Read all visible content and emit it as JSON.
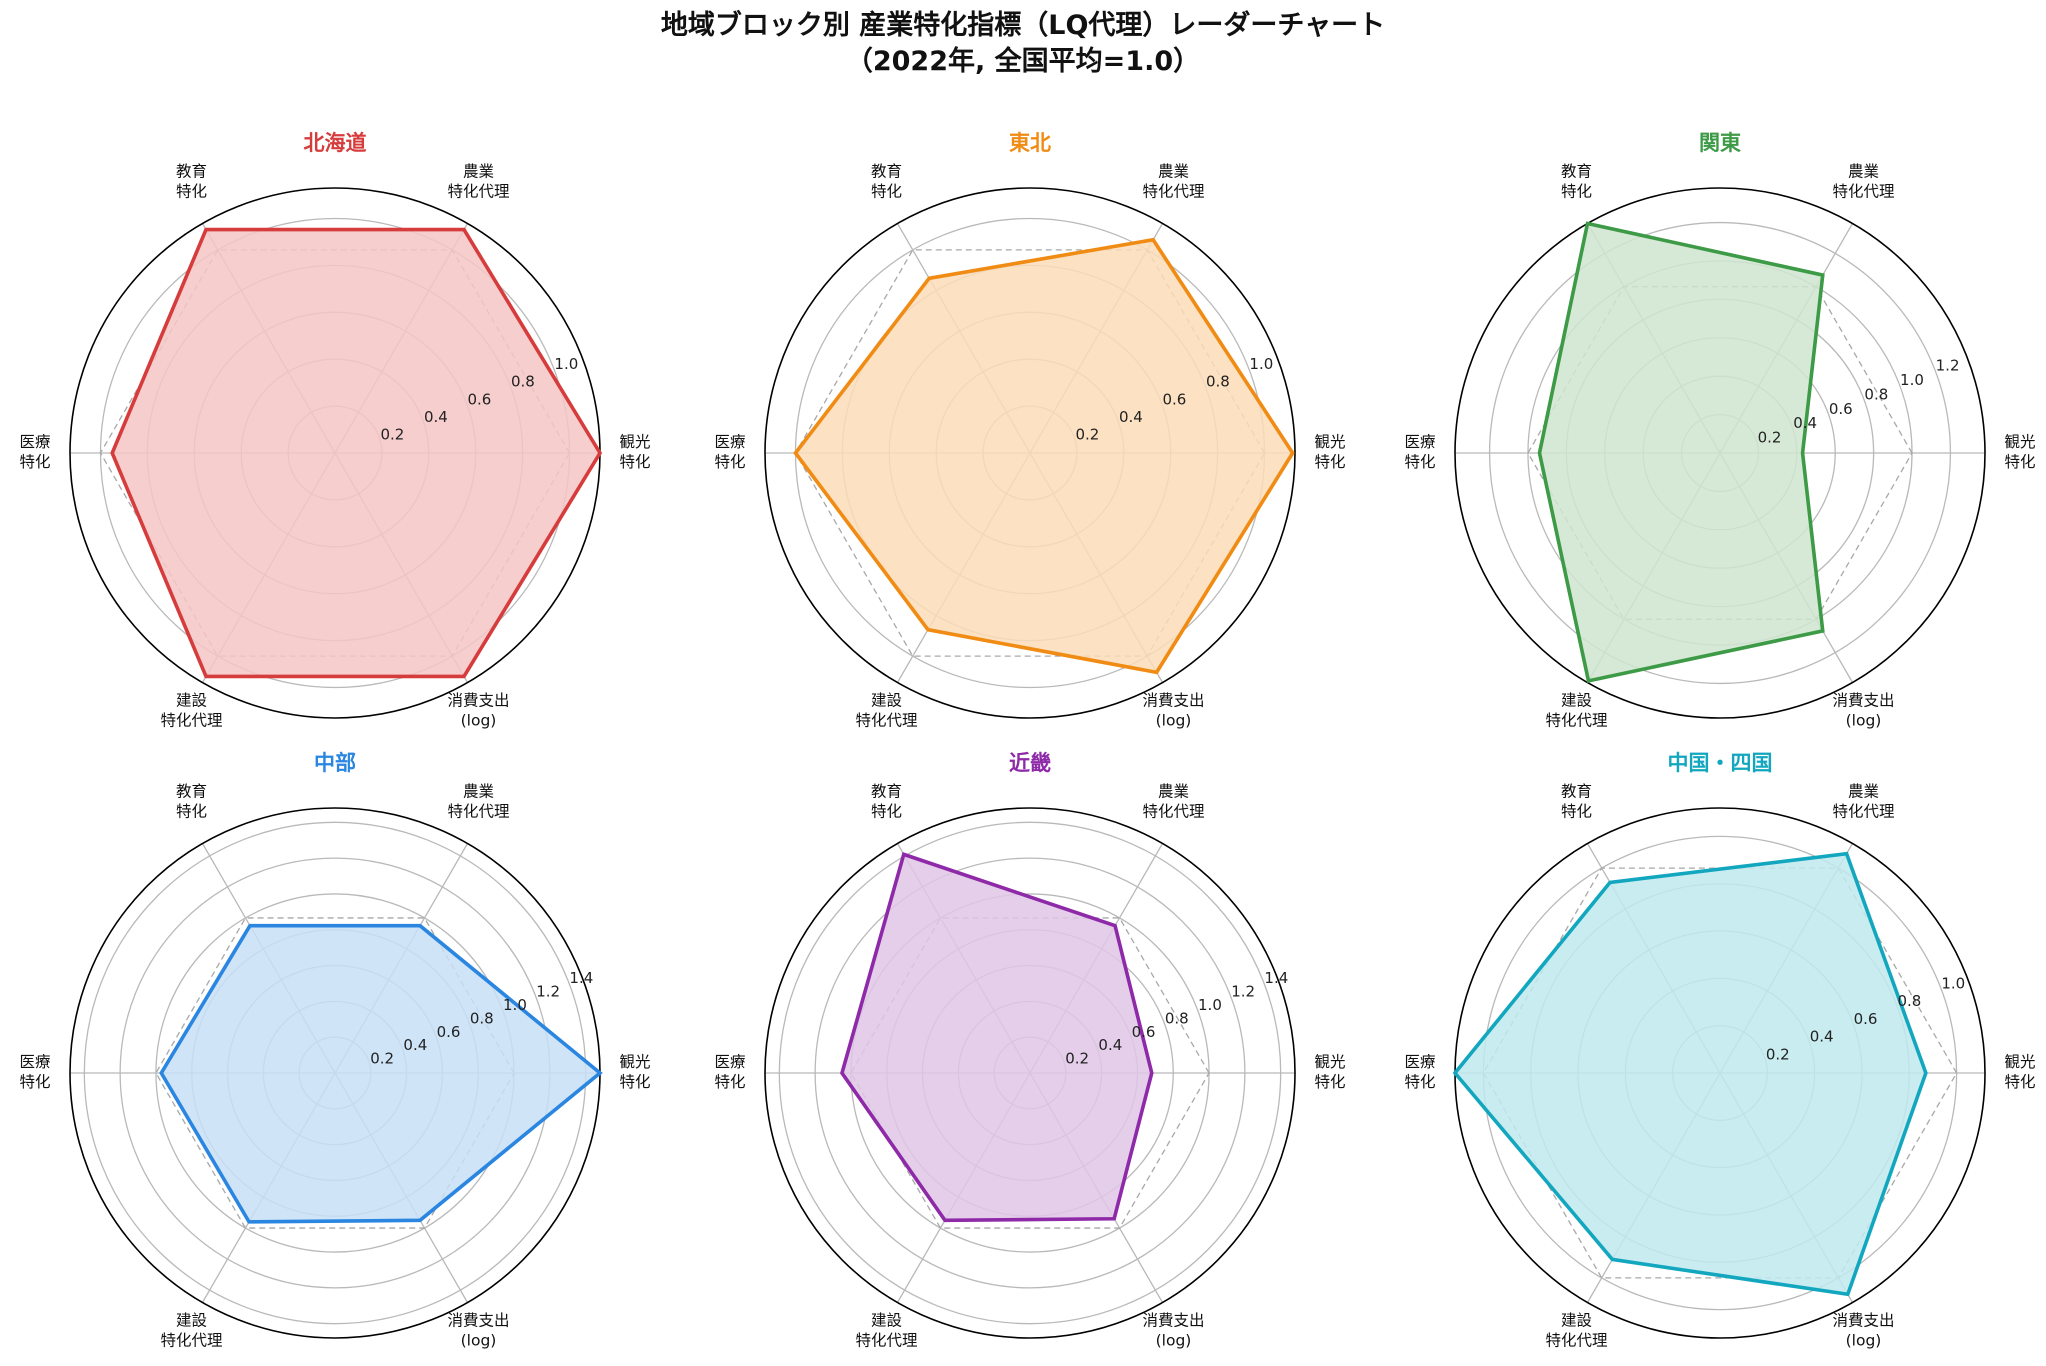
{
  "title_line1": "地域ブロック別 産業特化指標（LQ代理）レーダーチャート",
  "title_line2": "（2022年, 全国平均=1.0）",
  "chart_data": [
    {
      "type": "radar",
      "title": "北海道",
      "color": "#d63c3c",
      "fill": "#f6c6c6",
      "axes": [
        [
          "観光",
          "特化"
        ],
        [
          "農業",
          "特化代理"
        ],
        [
          "教育",
          "特化"
        ],
        [
          "医療",
          "特化"
        ],
        [
          "建設",
          "特化代理"
        ],
        [
          "消費支出",
          "(log)"
        ]
      ],
      "values": [
        1.13,
        1.1,
        1.1,
        0.95,
        1.1,
        1.1
      ],
      "baseline": 1.0,
      "rmax": 1.13,
      "ticks": [
        "0.2",
        "0.4",
        "0.6",
        "0.8",
        "1.0"
      ]
    },
    {
      "type": "radar",
      "title": "東北",
      "color": "#f08b14",
      "fill": "#fbdcb8",
      "axes": [
        [
          "観光",
          "特化"
        ],
        [
          "農業",
          "特化代理"
        ],
        [
          "教育",
          "特化"
        ],
        [
          "医療",
          "特化"
        ],
        [
          "建設",
          "特化代理"
        ],
        [
          "消費支出",
          "(log)"
        ]
      ],
      "values": [
        1.12,
        1.05,
        0.86,
        1.0,
        0.87,
        1.08
      ],
      "baseline": 1.0,
      "rmax": 1.13,
      "ticks": [
        "0.2",
        "0.4",
        "0.6",
        "0.8",
        "1.0"
      ]
    },
    {
      "type": "radar",
      "title": "関東",
      "color": "#3d9a46",
      "fill": "#cfe5cf",
      "axes": [
        [
          "観光",
          "特化"
        ],
        [
          "農業",
          "特化代理"
        ],
        [
          "教育",
          "特化"
        ],
        [
          "医療",
          "特化"
        ],
        [
          "建設",
          "特化代理"
        ],
        [
          "消費支出",
          "(log)"
        ]
      ],
      "values": [
        0.43,
        1.07,
        1.38,
        0.94,
        1.37,
        1.07
      ],
      "baseline": 1.0,
      "rmax": 1.38,
      "ticks": [
        "0.2",
        "0.4",
        "0.6",
        "0.8",
        "1.0",
        "1.2"
      ]
    },
    {
      "type": "radar",
      "title": "中部",
      "color": "#2a86e0",
      "fill": "#c7dff6",
      "axes": [
        [
          "観光",
          "特化"
        ],
        [
          "農業",
          "特化代理"
        ],
        [
          "教育",
          "特化"
        ],
        [
          "医療",
          "特化"
        ],
        [
          "建設",
          "特化代理"
        ],
        [
          "消費支出",
          "(log)"
        ]
      ],
      "values": [
        1.48,
        0.95,
        0.95,
        0.97,
        0.96,
        0.95
      ],
      "baseline": 1.0,
      "rmax": 1.48,
      "ticks": [
        "0.2",
        "0.4",
        "0.6",
        "0.8",
        "1.0",
        "1.2",
        "1.4"
      ]
    },
    {
      "type": "radar",
      "title": "近畿",
      "color": "#8e2aa8",
      "fill": "#dfc6e6",
      "axes": [
        [
          "観光",
          "特化"
        ],
        [
          "農業",
          "特化代理"
        ],
        [
          "教育",
          "特化"
        ],
        [
          "医療",
          "特化"
        ],
        [
          "建設",
          "特化代理"
        ],
        [
          "消費支出",
          "(log)"
        ]
      ],
      "values": [
        0.68,
        0.95,
        1.41,
        1.05,
        0.95,
        0.94
      ],
      "baseline": 1.0,
      "rmax": 1.48,
      "ticks": [
        "0.2",
        "0.4",
        "0.6",
        "0.8",
        "1.0",
        "1.2",
        "1.4"
      ]
    },
    {
      "type": "radar",
      "title": "中国・四国",
      "color": "#13a7bf",
      "fill": "#c0e9ef",
      "axes": [
        [
          "観光",
          "特化"
        ],
        [
          "農業",
          "特化代理"
        ],
        [
          "教育",
          "特化"
        ],
        [
          "医療",
          "特化"
        ],
        [
          "建設",
          "特化代理"
        ],
        [
          "消費支出",
          "(log)"
        ]
      ],
      "values": [
        0.87,
        1.07,
        0.93,
        1.12,
        0.91,
        1.08
      ],
      "baseline": 1.0,
      "rmax": 1.12,
      "ticks": [
        "0.2",
        "0.4",
        "0.6",
        "0.8",
        "1.0"
      ]
    }
  ]
}
